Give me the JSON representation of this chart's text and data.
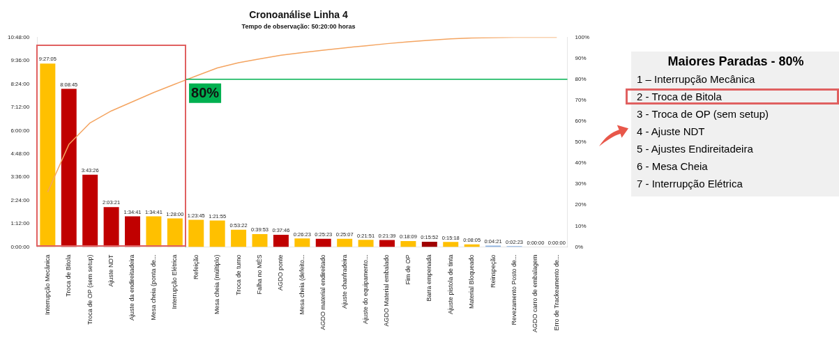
{
  "chart_data": [
    {
      "type": "bar",
      "title": "Cronoanálise Linha 4",
      "subtitle": "Tempo de observação: 50:20:00 horas",
      "categories": [
        "Interrupção Mecânica",
        "Troca de Bitola",
        "Troca de OP (sem setup)",
        "Ajuste NDT",
        "Ajuste da endireitadeira",
        "Mesa cheia (ponta de...",
        "Interrupção Elétrica",
        "Refeição",
        "Mesa cheia (múltiplo)",
        "Troca de turno",
        "Falha no MÊS",
        "AGDO ponte",
        "Mesa cheia (defeito...",
        "AGDO material endireitado",
        "Ajuste chanfradeira",
        "Ajuste do equipamento...",
        "AGDO Material embalado",
        "Fim de OP",
        "Barra empenada",
        "Ajuste pistola de tinta",
        "Material Bloqueado",
        "Reinspeção",
        "Revezamento Posto de...",
        "AGDO carro de embalagem",
        "Erro de Trackeamento de..."
      ],
      "series": [
        {
          "type": "bar",
          "colors": [
            "#ffc000",
            "#c00000",
            "#c00000",
            "#c00000",
            "#c00000",
            "#ffc000",
            "#ffc000",
            "#ffc000",
            "#ffc000",
            "#ffc000",
            "#ffc000",
            "#c00000",
            "#ffc000",
            "#c00000",
            "#ffc000",
            "#ffc000",
            "#c00000",
            "#ffc000",
            "#a00000",
            "#ffc000",
            "#ffc000",
            "#8eb4e3",
            "#8eb4e3",
            "#8eb4e3",
            "#8eb4e3"
          ],
          "values": [
            9.4514,
            8.1458,
            3.7239,
            2.0558,
            1.5781,
            1.5781,
            1.4667,
            1.3958,
            1.3653,
            0.8894,
            0.6647,
            0.6294,
            0.4397,
            0.4231,
            0.4186,
            0.3642,
            0.3608,
            0.3025,
            0.2644,
            0.255,
            0.1347,
            0.0725,
            0.0397,
            0,
            0
          ],
          "value_labels": [
            "9:27:05",
            "8:08:45",
            "3:43:26",
            "2:03:21",
            "1:34:41",
            "1:34:41",
            "1:28:00",
            "1:23:45",
            "1:21:55",
            "0:53:22",
            "0:39:53",
            "0:37:46",
            "0:26:23",
            "0:25:23",
            "0:25:07",
            "0:21:51",
            "0:21:39",
            "0:18:09",
            "0:15:52",
            "0:15:18",
            "0:08:05",
            "0:04:21",
            "0:02:23",
            "0:00:00",
            "0:00:00"
          ]
        },
        {
          "type": "line",
          "axis": "y2",
          "color": "#f4a460",
          "values": [
            26.2,
            48.9,
            59.2,
            64.9,
            69.3,
            73.7,
            77.7,
            81.6,
            85.4,
            87.9,
            89.7,
            91.5,
            92.7,
            93.9,
            95.0,
            96.0,
            97.0,
            97.9,
            98.6,
            99.3,
            99.7,
            99.9,
            100,
            100,
            100
          ]
        }
      ],
      "ylim": [
        0,
        10.8
      ],
      "yticks": [
        {
          "value": 0,
          "label": "0:00:00"
        },
        {
          "value": 1.2,
          "label": "1:12:00"
        },
        {
          "value": 2.4,
          "label": "2:24:00"
        },
        {
          "value": 3.6,
          "label": "3:36:00"
        },
        {
          "value": 4.8,
          "label": "4:48:00"
        },
        {
          "value": 6,
          "label": "6:00:00"
        },
        {
          "value": 7.2,
          "label": "7:12:00"
        },
        {
          "value": 8.4,
          "label": "8:24:00"
        },
        {
          "value": 9.6,
          "label": "9:36:00"
        },
        {
          "value": 10.8,
          "label": "10:48:00"
        }
      ],
      "y2lim": [
        0,
        100
      ],
      "y2ticks": [
        {
          "value": 0,
          "label": "0%"
        },
        {
          "value": 10,
          "label": "10%"
        },
        {
          "value": 20,
          "label": "20%"
        },
        {
          "value": 30,
          "label": "30%"
        },
        {
          "value": 40,
          "label": "40%"
        },
        {
          "value": 50,
          "label": "50%"
        },
        {
          "value": 60,
          "label": "60%"
        },
        {
          "value": 70,
          "label": "70%"
        },
        {
          "value": 80,
          "label": "80%"
        },
        {
          "value": 90,
          "label": "90%"
        },
        {
          "value": 100,
          "label": "100%"
        }
      ],
      "ref_lines": [
        {
          "axis": "y2",
          "value": 80,
          "label": "80%",
          "color": "#00b050"
        }
      ],
      "grid": false,
      "legend": false,
      "marker": "none"
    },
    {
      "type": "other",
      "title": "Maiores Paradas - 80%",
      "annotations": [
        "1 – Interrupção Mecânica",
        "2 - Troca de Bitola",
        "3 - Troca de OP (sem setup)",
        "4 - Ajuste NDT",
        "5 - Ajustes Endireitadeira",
        "6 - Mesa Cheia",
        "7 - Interrupção Elétrica"
      ]
    }
  ]
}
